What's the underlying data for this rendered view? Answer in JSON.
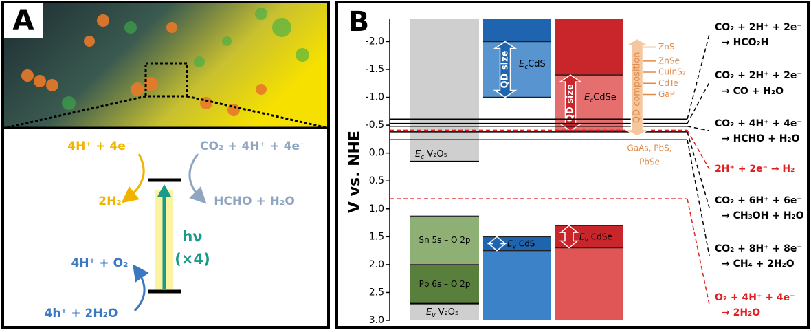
{
  "panel_a": {
    "label": "A",
    "top_left_input": "4H⁺ + 4e⁻",
    "top_left_output": "2H₂",
    "top_right_input": "CO₂ + 4H⁺ + 4e⁻",
    "top_right_output": "HCHO + H₂O",
    "photon": "hν",
    "photon_count": "(×4)",
    "bottom_output": "4H⁺ + O₂",
    "bottom_input": "4h⁺ + 2H₂O"
  },
  "panel_b": {
    "label": "B",
    "y_axis_label": "V vs. NHE",
    "ylim": [
      -2.4,
      3.0
    ],
    "yticks": [
      {
        "value": -2.0,
        "label": "-2.0"
      },
      {
        "value": -1.5,
        "label": "-1.5"
      },
      {
        "value": -1.0,
        "label": "-1.0"
      },
      {
        "value": -0.5,
        "label": "-0.5"
      },
      {
        "value": 0,
        "label": "0.0"
      },
      {
        "value": 0.5,
        "label": "0.5"
      },
      {
        "value": 1.0,
        "label": "1.0"
      },
      {
        "value": 1.5,
        "label": "1.5"
      },
      {
        "value": 2.0,
        "label": "2.0"
      },
      {
        "value": 2.5,
        "label": "2.5"
      },
      {
        "value": 3.0,
        "label": "3.0"
      }
    ],
    "v2o5": {
      "color": "#cfcfcf",
      "ec": 0.15,
      "ev": 2.7,
      "ec_label": {
        "symbol": "E",
        "sub": "c",
        "text": " V₂O₅"
      },
      "ev_label": {
        "symbol": "E",
        "sub": "v",
        "text": " V₂O₅"
      },
      "sub_bands": [
        {
          "label": "Sn 5s – O 2p",
          "top": 1.13,
          "bottom": 2.0,
          "color": "#8fb074"
        },
        {
          "label": "Pb 6s – O 2p",
          "top": 2.0,
          "bottom": 2.7,
          "color": "#58803c"
        }
      ]
    },
    "qds": [
      {
        "color": "#3b82c8",
        "dark": "#1e64ae",
        "ec_range": [
          -2.0,
          -1.0
        ],
        "ev_range": [
          1.5,
          1.75
        ],
        "arrow_label": "QD size",
        "ec_label": {
          "symbol": "E",
          "sub": "c",
          "text": "CdS"
        },
        "ev_label": {
          "symbol": "E",
          "sub": "v",
          "text": " CdS"
        }
      },
      {
        "color": "#e05555",
        "dark": "#c8262a",
        "ec_range": [
          -1.4,
          -0.4
        ],
        "ev_range": [
          1.3,
          1.7
        ],
        "arrow_label": "QD size",
        "ec_label": {
          "symbol": "E",
          "sub": "c",
          "text": "CdSe"
        },
        "ev_label": {
          "symbol": "E",
          "sub": "v",
          "text": " CdSe"
        }
      }
    ],
    "qd_composition": {
      "label": "QD composition",
      "color": "#e08a4a",
      "range": [
        -2.05,
        -0.3
      ],
      "materials": [
        {
          "name": "ZnS",
          "level": -1.9
        },
        {
          "name": "ZnSe",
          "level": -1.65
        },
        {
          "name": "CuInS₂",
          "level": -1.45
        },
        {
          "name": "CdTe",
          "level": -1.25
        },
        {
          "name": "GaP",
          "level": -1.05
        }
      ],
      "others": [
        "GaAs, PbS,",
        "PbSe"
      ]
    },
    "redox": [
      {
        "lines": [
          "CO₂ + 2H⁺ + 2e⁻",
          "→ HCO₂H"
        ],
        "potential": -0.61,
        "color": "#000000"
      },
      {
        "lines": [
          "CO₂ + 2H⁺ + 2e⁻",
          "→ CO + H₂O"
        ],
        "potential": -0.53,
        "color": "#000000"
      },
      {
        "lines": [
          "CO₂ + 4H⁺ + 4e⁻",
          "→ HCHO + H₂O"
        ],
        "potential": -0.48,
        "color": "#000000"
      },
      {
        "lines": [
          "2H⁺ + 2e⁻ → H₂"
        ],
        "potential": -0.41,
        "color": "#e02020"
      },
      {
        "lines": [
          "CO₂ + 6H⁺ + 6e⁻",
          "→ CH₃OH + H₂O"
        ],
        "potential": -0.38,
        "color": "#000000"
      },
      {
        "lines": [
          "CO₂ + 8H⁺ + 8e⁻",
          "→ CH₄ + 2H₂O"
        ],
        "potential": -0.24,
        "color": "#000000"
      },
      {
        "lines": [
          "O₂ + 4H⁺ + 4e⁻",
          "→ 2H₂O"
        ],
        "potential": 0.82,
        "color": "#e02020"
      }
    ]
  }
}
